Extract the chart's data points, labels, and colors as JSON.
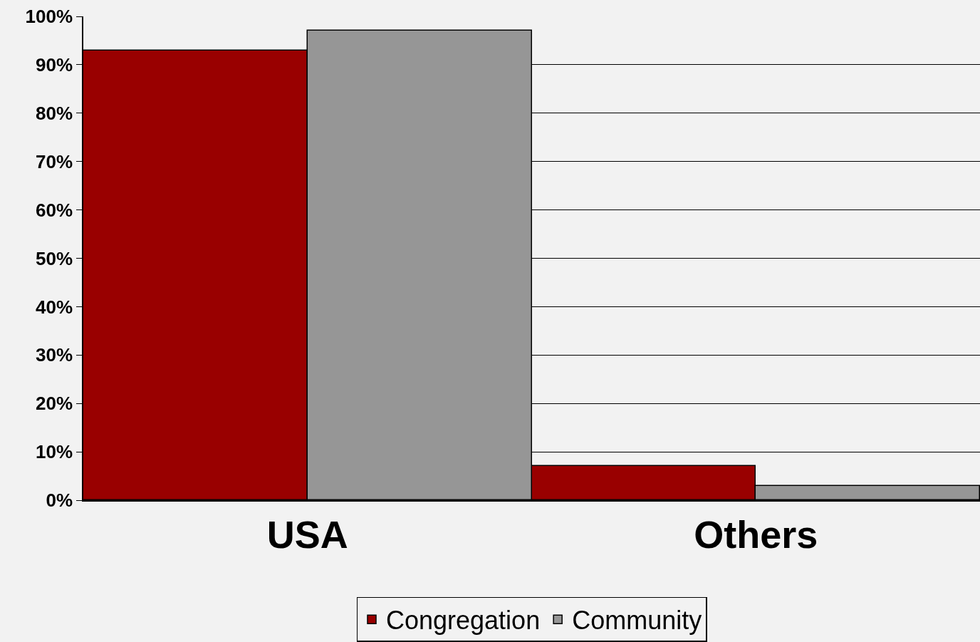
{
  "chart_data": {
    "type": "bar",
    "categories": [
      "USA",
      "Others"
    ],
    "series": [
      {
        "name": "Congregation",
        "color": "#990000",
        "values": [
          93,
          7
        ]
      },
      {
        "name": "Community",
        "color": "#969696",
        "values": [
          97,
          3
        ]
      }
    ],
    "ylim": [
      0,
      100
    ],
    "yticks": [
      {
        "value": 0,
        "label": "0%"
      },
      {
        "value": 10,
        "label": "10%"
      },
      {
        "value": 20,
        "label": "20%"
      },
      {
        "value": 30,
        "label": "30%"
      },
      {
        "value": 40,
        "label": "40%"
      },
      {
        "value": 50,
        "label": "50%"
      },
      {
        "value": 60,
        "label": "60%"
      },
      {
        "value": 70,
        "label": "70%"
      },
      {
        "value": 80,
        "label": "80%"
      },
      {
        "value": 90,
        "label": "90%"
      },
      {
        "value": 100,
        "label": "100%"
      }
    ],
    "grid": "y",
    "legend": "bottom"
  }
}
